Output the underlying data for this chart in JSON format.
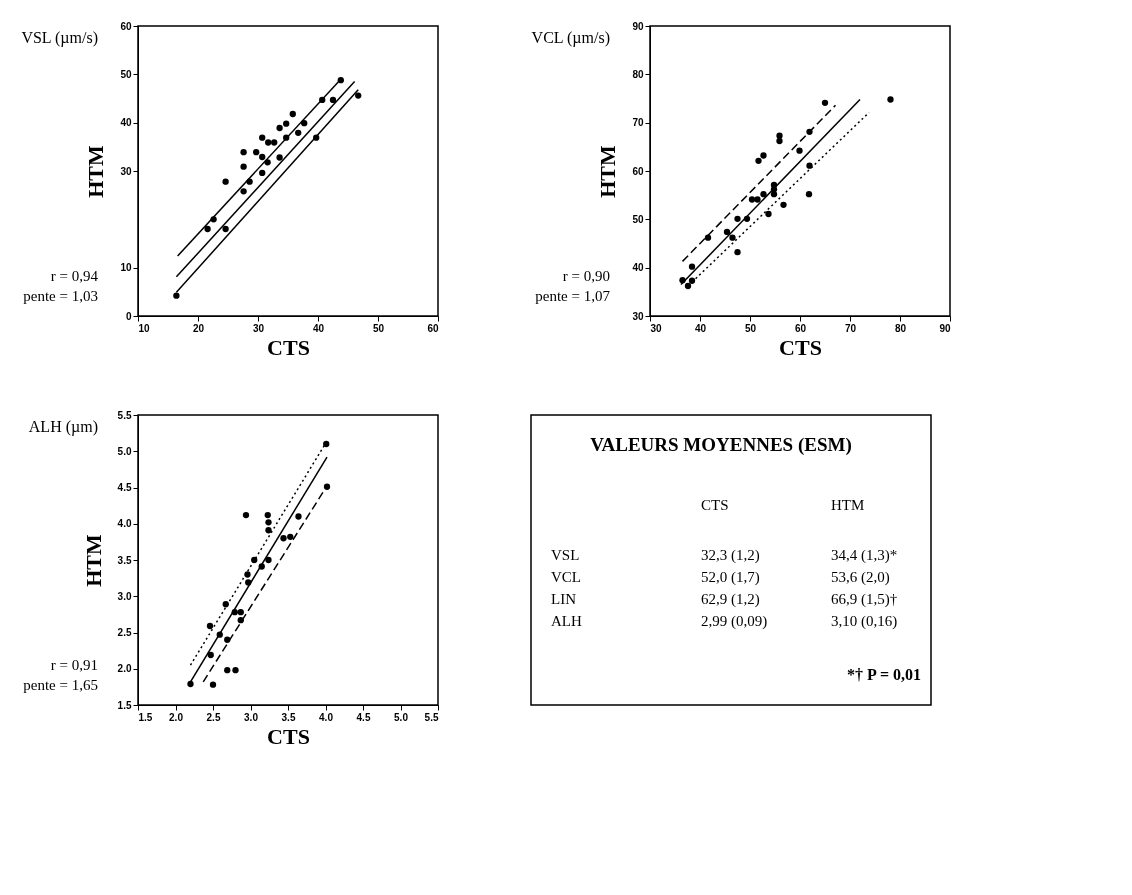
{
  "chart_data": [
    {
      "type": "scatter",
      "title": "VSL (µm/s)",
      "xlabel": "CTS",
      "ylabel": "HTM",
      "annotations": [
        "r = 0,94",
        "pente = 1,03"
      ],
      "xlim": [
        10,
        60
      ],
      "ylim": [
        0,
        60
      ],
      "xticks": [
        10,
        20,
        30,
        40,
        50,
        60
      ],
      "yticks": [
        0,
        10,
        30,
        40,
        50,
        60
      ],
      "series": [
        {
          "type": "scatter",
          "marker": "circle",
          "color": "#000000",
          "x": [
            16.4,
            21.6,
            22.6,
            24.6,
            24.6,
            27.6,
            27.6,
            27.6,
            28.6,
            29.7,
            30.7,
            30.7,
            30.7,
            31.6,
            31.7,
            32.7,
            33.6,
            33.6,
            34.7,
            35.8,
            34.7,
            36.7,
            37.7,
            39.7,
            40.7,
            42.5,
            43.8,
            46.7
          ],
          "values": [
            4.2,
            18.0,
            20.0,
            27.8,
            18.0,
            30.9,
            33.9,
            25.8,
            27.8,
            33.9,
            36.9,
            32.9,
            29.6,
            31.8,
            35.9,
            35.9,
            32.8,
            38.9,
            39.8,
            41.8,
            36.9,
            37.9,
            39.9,
            36.9,
            44.7,
            44.7,
            48.8,
            45.6
          ]
        },
        {
          "type": "line",
          "color": "#000000",
          "line_style": "solid",
          "x": [
            16.4,
            46.1
          ],
          "values": [
            8.1,
            48.5
          ]
        },
        {
          "type": "line",
          "color": "#000000",
          "line_style": "solid",
          "x": [
            16.6,
            43.8
          ],
          "values": [
            12.4,
            49.0
          ]
        },
        {
          "type": "line",
          "color": "#000000",
          "line_style": "solid",
          "x": [
            16.4,
            46.7
          ],
          "values": [
            4.9,
            46.8
          ]
        }
      ]
    },
    {
      "type": "scatter",
      "title": "VCL (µm/s)",
      "xlabel": "CTS",
      "ylabel": "HTM",
      "annotations": [
        "r = 0,90",
        "pente = 1,07"
      ],
      "xlim": [
        30,
        90
      ],
      "ylim": [
        30,
        90
      ],
      "xticks": [
        30,
        40,
        50,
        60,
        70,
        80,
        90
      ],
      "yticks": [
        30,
        40,
        50,
        60,
        70,
        80,
        90
      ],
      "series": [
        {
          "type": "scatter",
          "marker": "circle",
          "color": "#000000",
          "x": [
            36.5,
            37.6,
            38.4,
            38.4,
            41.6,
            45.4,
            46.5,
            47.5,
            47.5,
            49.4,
            50.4,
            51.5,
            51.7,
            52.7,
            52.7,
            53.7,
            54.8,
            54.8,
            54.8,
            55.9,
            55.9,
            56.7,
            59.9,
            61.9,
            61.9,
            61.8,
            65.0,
            78.1
          ],
          "values": [
            37.4,
            36.2,
            40.2,
            37.3,
            46.2,
            47.4,
            46.2,
            43.2,
            50.1,
            50.1,
            54.1,
            54.1,
            62.1,
            63.2,
            55.2,
            51.1,
            56.2,
            57.1,
            55.2,
            67.3,
            66.2,
            53.0,
            64.2,
            68.1,
            61.1,
            55.2,
            74.1,
            74.8
          ]
        },
        {
          "type": "line",
          "color": "#000000",
          "line_style": "solid",
          "x": [
            36.2,
            72.0
          ],
          "values": [
            36.5,
            74.8
          ]
        },
        {
          "type": "line",
          "color": "#000000",
          "line_style": "dashed",
          "x": [
            36.5,
            67.1
          ],
          "values": [
            41.3,
            73.6
          ]
        },
        {
          "type": "line",
          "color": "#000000",
          "line_style": "dotted",
          "x": [
            38.4,
            73.8
          ],
          "values": [
            37.0,
            72.1
          ]
        }
      ]
    },
    {
      "type": "scatter",
      "title": "ALH (µm)",
      "xlabel": "CTS",
      "ylabel": "HTM",
      "annotations": [
        "r = 0,91",
        "pente = 1,65"
      ],
      "xlim": [
        1.5,
        5.5
      ],
      "ylim": [
        1.5,
        5.5
      ],
      "xticks": [
        1.5,
        {
          "value": 2,
          "label": "2.0"
        },
        2.5,
        {
          "value": 3,
          "label": "3.0"
        },
        3.5,
        {
          "value": 4,
          "label": "4.0"
        },
        4.5,
        {
          "value": 5,
          "label": "5.0"
        },
        5.5
      ],
      "yticks": [
        1.5,
        {
          "value": 2,
          "label": "2.0"
        },
        2.5,
        {
          "value": 3,
          "label": "3.0"
        },
        3.5,
        {
          "value": 4,
          "label": "4.0"
        },
        4.5,
        {
          "value": 5,
          "label": "5.0"
        },
        5.5
      ],
      "series": [
        {
          "type": "scatter",
          "marker": "circle",
          "color": "#000000",
          "x": [
            2.2,
            2.46,
            2.5,
            2.47,
            2.59,
            2.67,
            2.69,
            2.8,
            2.69,
            2.79,
            2.87,
            2.87,
            2.94,
            2.96,
            2.97,
            3.05,
            3.15,
            3.24,
            3.23,
            3.24,
            3.24,
            3.44,
            3.53,
            3.64,
            4.01,
            4.02
          ],
          "values": [
            1.79,
            2.59,
            1.78,
            2.19,
            2.47,
            2.89,
            1.98,
            1.98,
            2.4,
            2.78,
            2.78,
            2.67,
            4.12,
            3.3,
            3.19,
            3.5,
            3.41,
            3.5,
            4.12,
            4.02,
            3.91,
            3.8,
            3.82,
            4.1,
            5.1,
            4.51
          ]
        },
        {
          "type": "line",
          "color": "#000000",
          "line_style": "solid",
          "x": [
            2.2,
            4.02
          ],
          "values": [
            1.82,
            4.92
          ]
        },
        {
          "type": "line",
          "color": "#000000",
          "line_style": "dotted",
          "x": [
            2.2,
            3.99
          ],
          "values": [
            2.05,
            5.09
          ]
        },
        {
          "type": "line",
          "color": "#000000",
          "line_style": "dashed",
          "x": [
            2.37,
            3.97
          ],
          "values": [
            1.82,
            4.44
          ]
        }
      ]
    },
    {
      "type": "other",
      "title": "VALEURS MOYENNES (ESM)",
      "annotations": [
        "CTS",
        "HTM",
        "VSL",
        "32,3 (1,2)",
        "34,4 (1,3)*",
        "VCL",
        "52,0 (1,7)",
        "53,6 (2,0)",
        "LIN",
        "62,9 (1,2)",
        "66,9 (1,5)†",
        "ALH",
        "2,99 (0,09)",
        "3,10 (0,16)",
        "*† P = 0,01"
      ]
    }
  ]
}
